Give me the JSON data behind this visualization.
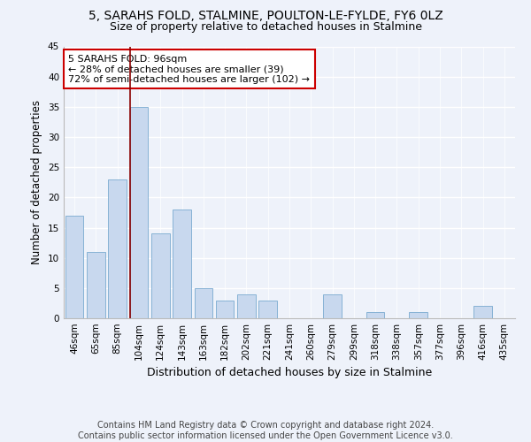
{
  "title1": "5, SARAHS FOLD, STALMINE, POULTON-LE-FYLDE, FY6 0LZ",
  "title2": "Size of property relative to detached houses in Stalmine",
  "xlabel": "Distribution of detached houses by size in Stalmine",
  "ylabel": "Number of detached properties",
  "categories": [
    "46sqm",
    "65sqm",
    "85sqm",
    "104sqm",
    "124sqm",
    "143sqm",
    "163sqm",
    "182sqm",
    "202sqm",
    "221sqm",
    "241sqm",
    "260sqm",
    "279sqm",
    "299sqm",
    "318sqm",
    "338sqm",
    "357sqm",
    "377sqm",
    "396sqm",
    "416sqm",
    "435sqm"
  ],
  "values": [
    17,
    11,
    23,
    35,
    14,
    18,
    5,
    3,
    4,
    3,
    0,
    0,
    4,
    0,
    1,
    0,
    1,
    0,
    0,
    2,
    0
  ],
  "bar_color": "#c8d8ee",
  "bar_edge_color": "#7aaad0",
  "marker_index": 3,
  "marker_color": "#8b0000",
  "annotation_text": "5 SARAHS FOLD: 96sqm\n← 28% of detached houses are smaller (39)\n72% of semi-detached houses are larger (102) →",
  "annotation_box_color": "#ffffff",
  "annotation_box_edge_color": "#cc0000",
  "ylim": [
    0,
    45
  ],
  "yticks": [
    0,
    5,
    10,
    15,
    20,
    25,
    30,
    35,
    40,
    45
  ],
  "background_color": "#eef2fa",
  "grid_color": "#ffffff",
  "footer_text": "Contains HM Land Registry data © Crown copyright and database right 2024.\nContains public sector information licensed under the Open Government Licence v3.0.",
  "title1_fontsize": 10,
  "title2_fontsize": 9,
  "xlabel_fontsize": 9,
  "ylabel_fontsize": 8.5,
  "tick_fontsize": 7.5,
  "footer_fontsize": 7,
  "ann_fontsize": 8
}
